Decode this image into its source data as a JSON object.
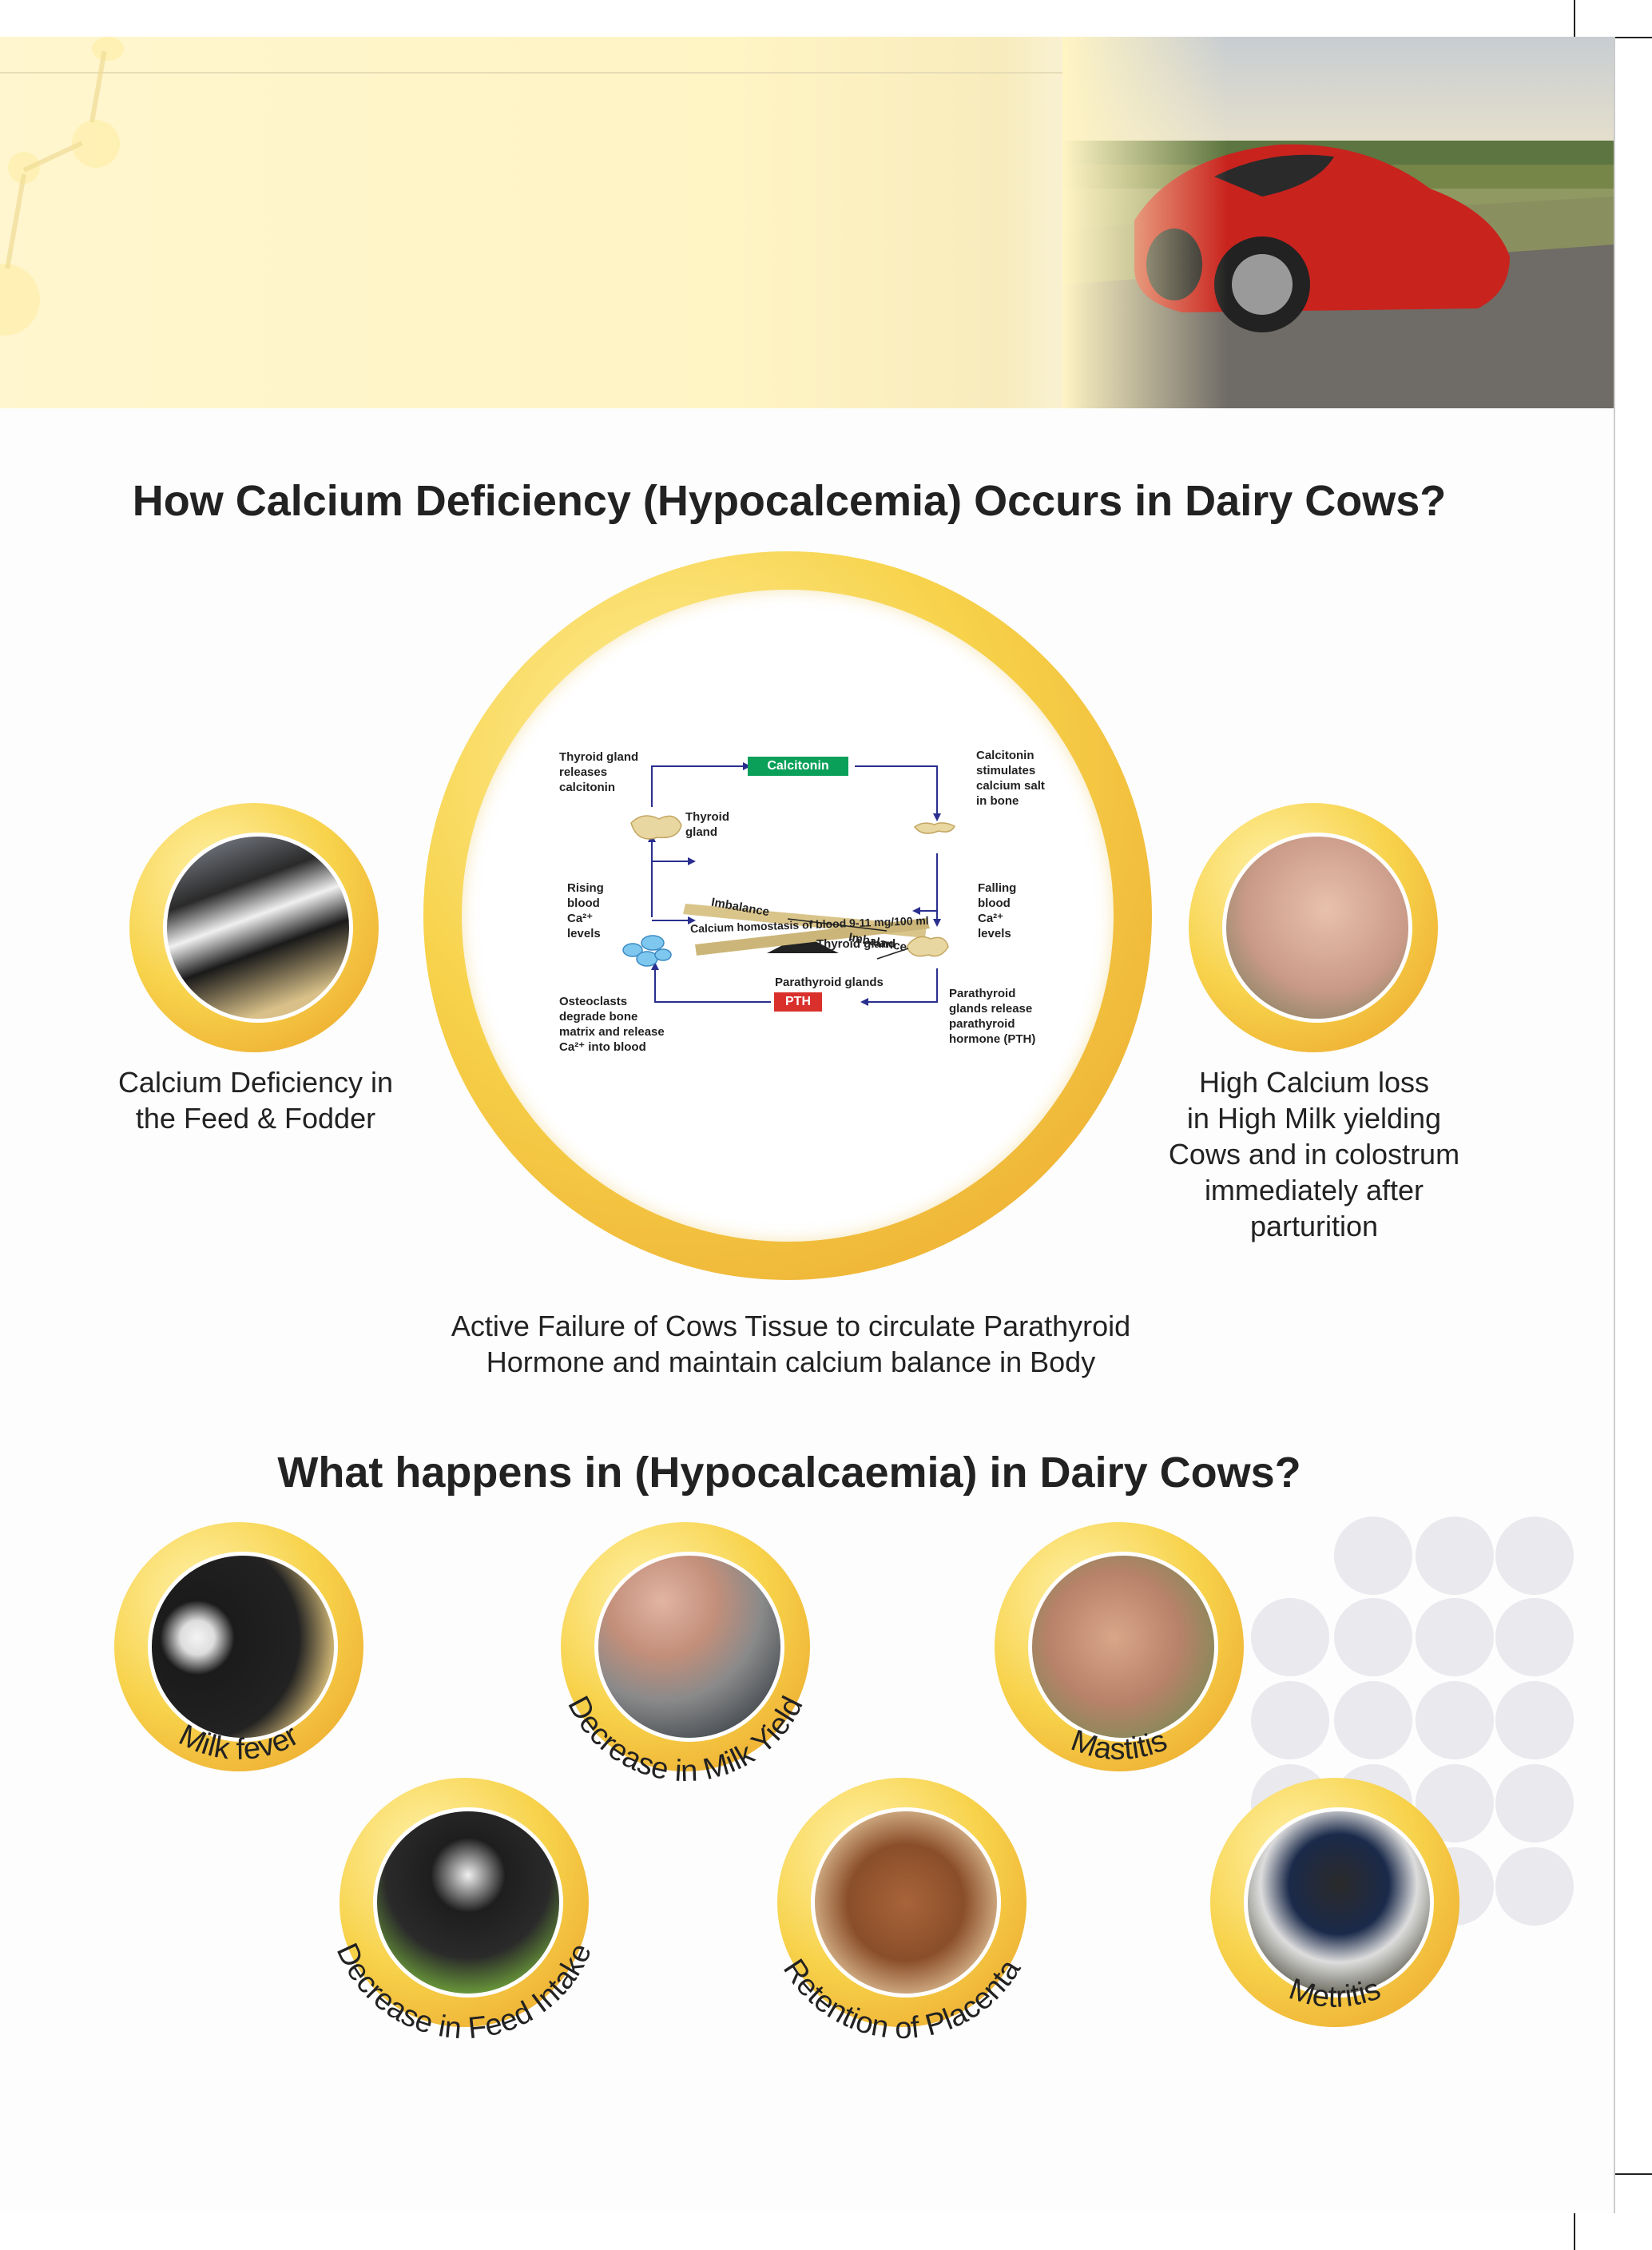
{
  "section1": {
    "title": "How Calcium Deficiency (Hypocalcemia) Occurs in Dairy Cows?",
    "left_caption": [
      "Calcium Deficiency in",
      "the Feed & Fodder"
    ],
    "right_caption": [
      "High Calcium loss",
      "in High Milk yielding",
      "Cows and in colostrum",
      "immediately after",
      "parturition"
    ],
    "bottom_caption": [
      "Active Failure of Cows Tissue to circulate Parathyroid",
      "Hormone and maintain calcium balance in Body"
    ]
  },
  "diagram": {
    "calcitonin_box": "Calcitonin",
    "pth_box": "PTH",
    "thyroid_releases": [
      "Thyroid gland",
      "releases",
      "calcitonin"
    ],
    "thyroid_gland": [
      "Thyroid",
      "gland"
    ],
    "calcitonin_stimulates": [
      "Calcitonin",
      "stimulates",
      "calcium salt",
      "in bone"
    ],
    "rising": [
      "Rising",
      "blood",
      "Ca²⁺",
      "levels"
    ],
    "falling": [
      "Falling",
      "blood",
      "Ca²⁺",
      "levels"
    ],
    "imbalance_top": "Imbalance",
    "imbalance_bottom": "Imbalance",
    "homeostasis": "Calcium homostasis of blood 9-11 mg/100 ml",
    "thyroid_gland_2": "Thyroid gland",
    "parathyroid_glands": "Parathyroid glands",
    "parathyroid_release": [
      "Parathyroid",
      "glands release",
      "parathyroid",
      "hormone (PTH)"
    ],
    "osteoclasts": [
      "Osteoclasts",
      "degrade bone",
      "matrix and release",
      "Ca²⁺ into blood"
    ],
    "colors": {
      "calcitonin": "#0aa05a",
      "pth": "#d9302c",
      "arrow": "#2a2f8f",
      "seesaw": "#d9c48a"
    }
  },
  "section2": {
    "title": "What happens in (Hypocalcaemia) in Dairy Cows?",
    "items": [
      {
        "label": "Milk fever"
      },
      {
        "label": "Decrease in Milk Yield"
      },
      {
        "label": "Mastitis"
      },
      {
        "label": "Decrease in Feed Intake"
      },
      {
        "label": "Retention of Placenta"
      },
      {
        "label": "Metritis"
      }
    ]
  },
  "colors": {
    "ring_gold": "#f3c83e",
    "ring_light": "#fff1a8",
    "banner": "#fff4c4",
    "dots": "#e9e9ee"
  }
}
